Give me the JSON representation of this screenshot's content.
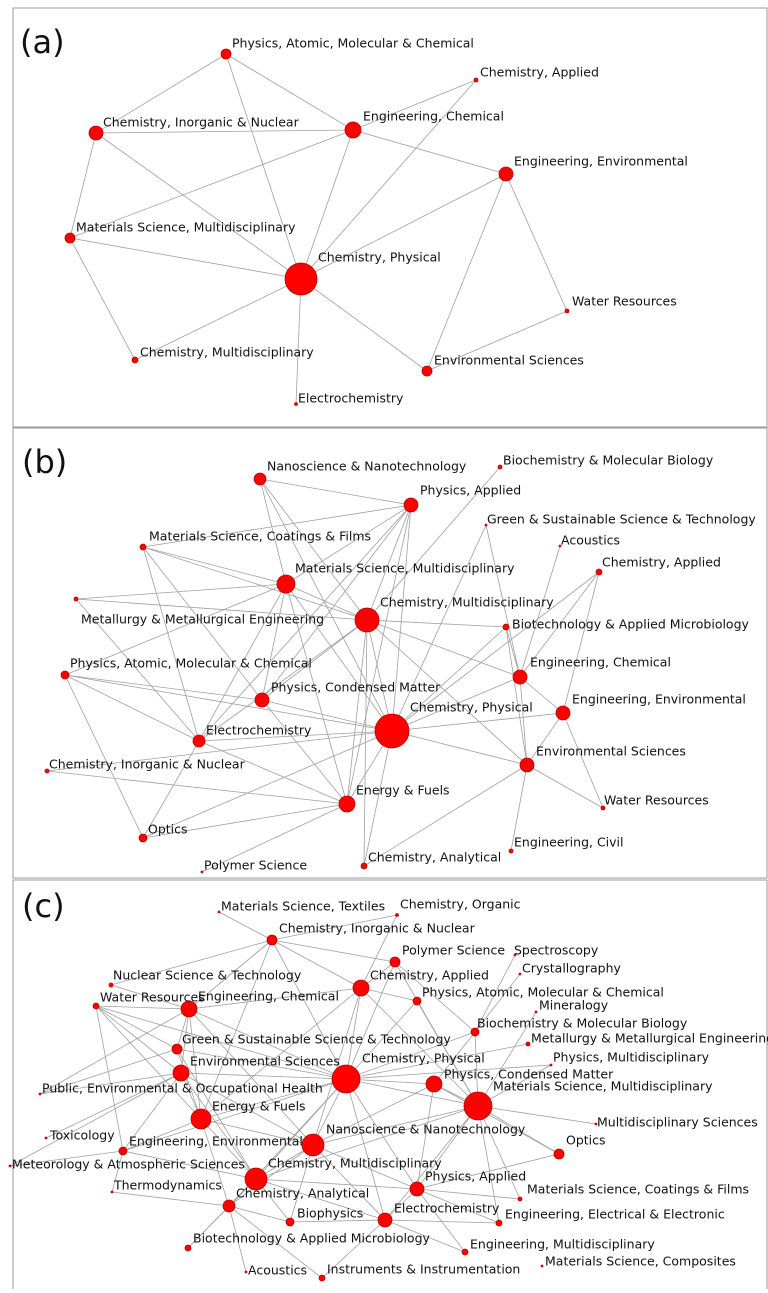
{
  "panels": [
    {
      "label": "(a)",
      "nodes": [
        "Physics, Atomic, Molecular & Chemical",
        "Chemistry, Applied",
        "Chemistry, Inorganic & Nuclear",
        "Engineering, Chemical",
        "Engineering, Environmental",
        "Materials Science, Multidisciplinary",
        "Chemistry, Physical",
        "Water Resources",
        "Chemistry, Multidisciplinary",
        "Environmental Sciences",
        "Electrochemistry"
      ]
    },
    {
      "label": "(b)",
      "nodes": [
        "Nanoscience & Nanotechnology",
        "Biochemistry & Molecular Biology",
        "Physics, Applied",
        "Green & Sustainable Science & Technology",
        "Materials Science, Coatings & Films",
        "Acoustics",
        "Materials Science, Multidisciplinary",
        "Chemistry, Applied",
        "Chemistry, Multidisciplinary",
        "Metallurgy & Metallurgical Engineering",
        "Biotechnology & Applied Microbiology",
        "Physics, Atomic, Molecular & Chemical",
        "Engineering, Chemical",
        "Physics, Condensed Matter",
        "Engineering, Environmental",
        "Chemistry, Physical",
        "Electrochemistry",
        "Chemistry, Inorganic & Nuclear",
        "Environmental Sciences",
        "Energy & Fuels",
        "Water Resources",
        "Optics",
        "Engineering, Civil",
        "Polymer Science",
        "Chemistry, Analytical"
      ]
    },
    {
      "label": "(c)",
      "nodes": [
        "Materials Science, Textiles",
        "Chemistry, Organic",
        "Chemistry, Inorganic & Nuclear",
        "Polymer Science",
        "Spectroscopy",
        "Crystallography",
        "Nuclear Science & Technology",
        "Chemistry, Applied",
        "Physics, Atomic, Molecular & Chemical",
        "Engineering, Chemical",
        "Mineralogy",
        "Water Resources",
        "Biochemistry & Molecular Biology",
        "Metallurgy & Metallurgical Engineering",
        "Green & Sustainable Science & Technology",
        "Physics, Multidisciplinary",
        "Chemistry, Physical",
        "Environmental Sciences",
        "Physics, Condensed Matter",
        "Public, Environmental & Occupational Health",
        "Materials Science, Multidisciplinary",
        "Energy & Fuels",
        "Multidisciplinary Sciences",
        "Toxicology",
        "Nanoscience & Nanotechnology",
        "Optics",
        "Engineering, Environmental",
        "Meteorology & Atmospheric Sciences",
        "Chemistry, Multidisciplinary",
        "Physics, Applied",
        "Thermodynamics",
        "Materials Science, Coatings & Films",
        "Chemistry, Analytical",
        "Biophysics",
        "Electrochemistry",
        "Engineering, Electrical & Electronic",
        "Biotechnology & Applied Microbiology",
        "Engineering, Multidisciplinary",
        "Materials Science, Composites",
        "Acoustics",
        "Instruments & Instrumentation"
      ]
    }
  ]
}
